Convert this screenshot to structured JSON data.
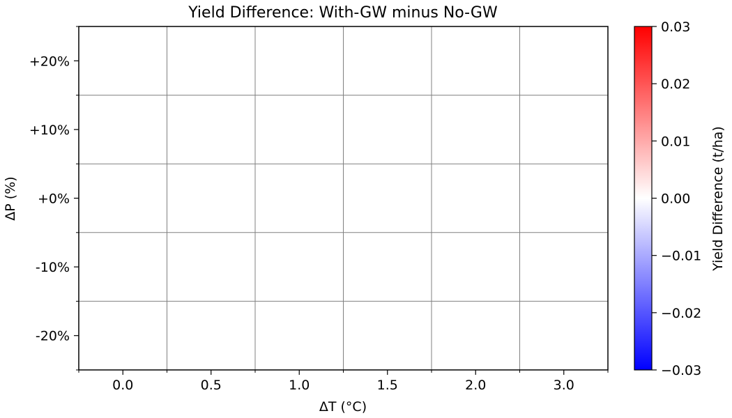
{
  "chart_data": {
    "type": "heatmap",
    "title": "Yield Difference: With-GW minus No-GW",
    "xlabel": "ΔT (°C)",
    "ylabel": "ΔP (%)",
    "x_categories": [
      "0.0",
      "0.5",
      "1.0",
      "1.5",
      "2.0",
      "3.0"
    ],
    "y_categories": [
      "+20%",
      "+10%",
      "+0%",
      "-10%",
      "-20%"
    ],
    "values": [
      [
        0,
        0,
        0,
        0,
        0,
        0
      ],
      [
        0,
        0,
        0,
        0,
        0,
        0
      ],
      [
        0,
        0,
        0,
        0,
        0,
        0
      ],
      [
        0,
        0,
        0,
        0,
        0,
        0
      ],
      [
        0,
        0,
        0,
        0,
        0,
        0
      ]
    ],
    "grid": true,
    "colorbar": {
      "label": "Yield Difference (t/ha)",
      "range": [
        -0.03,
        0.03
      ],
      "ticks": [
        "−0.03",
        "−0.02",
        "−0.01",
        "0.00",
        "0.01",
        "0.02",
        "0.03"
      ],
      "colormap": "bwr",
      "colors": [
        "#0000ff",
        "#ffffff",
        "#ff0000"
      ]
    }
  }
}
